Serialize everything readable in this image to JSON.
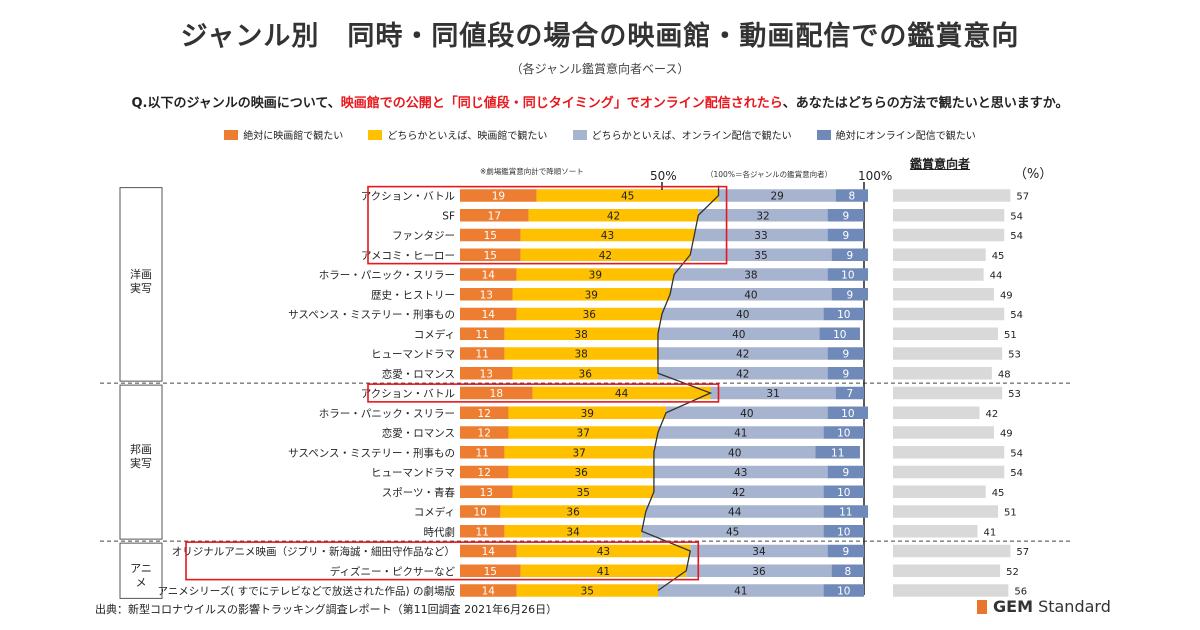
{
  "title": "ジャンル別　同時・同値段の場合の映画館・動画配信での鑑賞意向",
  "subtitle": "（各ジャンル鑑賞意向者ベース）",
  "question": {
    "prefix": "Q.以下のジャンルの映画について、",
    "highlight": "映画館での公開と「同じ値段・同じタイミング」でオンライン配信されたら",
    "suffix": "、あなたはどちらの方法で観たいと思いますか。"
  },
  "legend": [
    {
      "label": "絶対に映画館で観たい",
      "color": "#ed7d31"
    },
    {
      "label": "どちらかといえば、映画館で観たい",
      "color": "#ffc000"
    },
    {
      "label": "どちらかといえば、オンライン配信で観たい",
      "color": "#a7b4cf"
    },
    {
      "label": "絶対にオンライン配信で観たい",
      "color": "#6f8ab8"
    }
  ],
  "notes": {
    "sort": "※劇場鑑賞意向計で降順ソート",
    "base": "（100%＝各ジャンルの鑑賞意向者）",
    "mark50": "50%",
    "mark100": "100%",
    "viewer_header": "鑑賞意向者",
    "unit": "（%）"
  },
  "groups": [
    {
      "label": "洋画\n実写"
    },
    {
      "label": "邦画\n実写"
    },
    {
      "label": "アニメ"
    }
  ],
  "source": "出典：新型コロナウイルスの影響トラッキング調査レポート（第11回調査 2021年6月26日）",
  "brand": {
    "name": "GEM",
    "suffix": " Standard",
    "color": "#e9742b"
  },
  "chart_data": {
    "type": "bar",
    "stacked": true,
    "orientation": "horizontal",
    "xlim": [
      0,
      100
    ],
    "series_names": [
      "絶対に映画館で観たい",
      "どちらかといえば、映画館で観たい",
      "どちらかといえば、オンライン配信で観たい",
      "絶対にオンライン配信で観たい"
    ],
    "categories": [
      "アクション・バトル",
      "SF",
      "ファンタジー",
      "アメコミ・ヒーロー",
      "ホラー・パニック・スリラー",
      "歴史・ヒストリー",
      "サスペンス・ミステリー・刑事もの",
      "コメディ",
      "ヒューマンドラマ",
      "恋愛・ロマンス",
      "アクション・バトル",
      "ホラー・パニック・スリラー",
      "恋愛・ロマンス",
      "サスペンス・ミステリー・刑事もの",
      "ヒューマンドラマ",
      "スポーツ・青春",
      "コメディ",
      "時代劇",
      "オリジナルアニメ映画（ジブリ・新海誠・細田守作品など）",
      "ディズニー・ピクサーなど",
      "アニメシリーズ( すでにテレビなどで放送された作品) の劇場版"
    ],
    "group_of_row": [
      0,
      0,
      0,
      0,
      0,
      0,
      0,
      0,
      0,
      0,
      1,
      1,
      1,
      1,
      1,
      1,
      1,
      1,
      2,
      2,
      2
    ],
    "values": [
      [
        19,
        45,
        29,
        8
      ],
      [
        17,
        42,
        32,
        9
      ],
      [
        15,
        43,
        33,
        9
      ],
      [
        15,
        42,
        35,
        9
      ],
      [
        14,
        39,
        38,
        10
      ],
      [
        13,
        39,
        40,
        9
      ],
      [
        14,
        36,
        40,
        10
      ],
      [
        11,
        38,
        40,
        10
      ],
      [
        11,
        38,
        42,
        9
      ],
      [
        13,
        36,
        42,
        9
      ],
      [
        18,
        44,
        31,
        7
      ],
      [
        12,
        39,
        40,
        10
      ],
      [
        12,
        37,
        41,
        10
      ],
      [
        11,
        37,
        40,
        11
      ],
      [
        12,
        36,
        43,
        9
      ],
      [
        13,
        35,
        42,
        10
      ],
      [
        10,
        36,
        44,
        11
      ],
      [
        11,
        34,
        45,
        10
      ],
      [
        14,
        43,
        34,
        9
      ],
      [
        15,
        41,
        36,
        8
      ],
      [
        14,
        35,
        41,
        10
      ]
    ],
    "viewer_share": [
      57,
      54,
      54,
      45,
      44,
      49,
      54,
      51,
      53,
      48,
      53,
      42,
      49,
      54,
      54,
      45,
      51,
      41,
      57,
      52,
      56
    ],
    "viewer_max": 60,
    "highlight_boxes": [
      [
        0,
        3
      ],
      [
        10,
        10
      ],
      [
        18,
        19
      ]
    ]
  }
}
